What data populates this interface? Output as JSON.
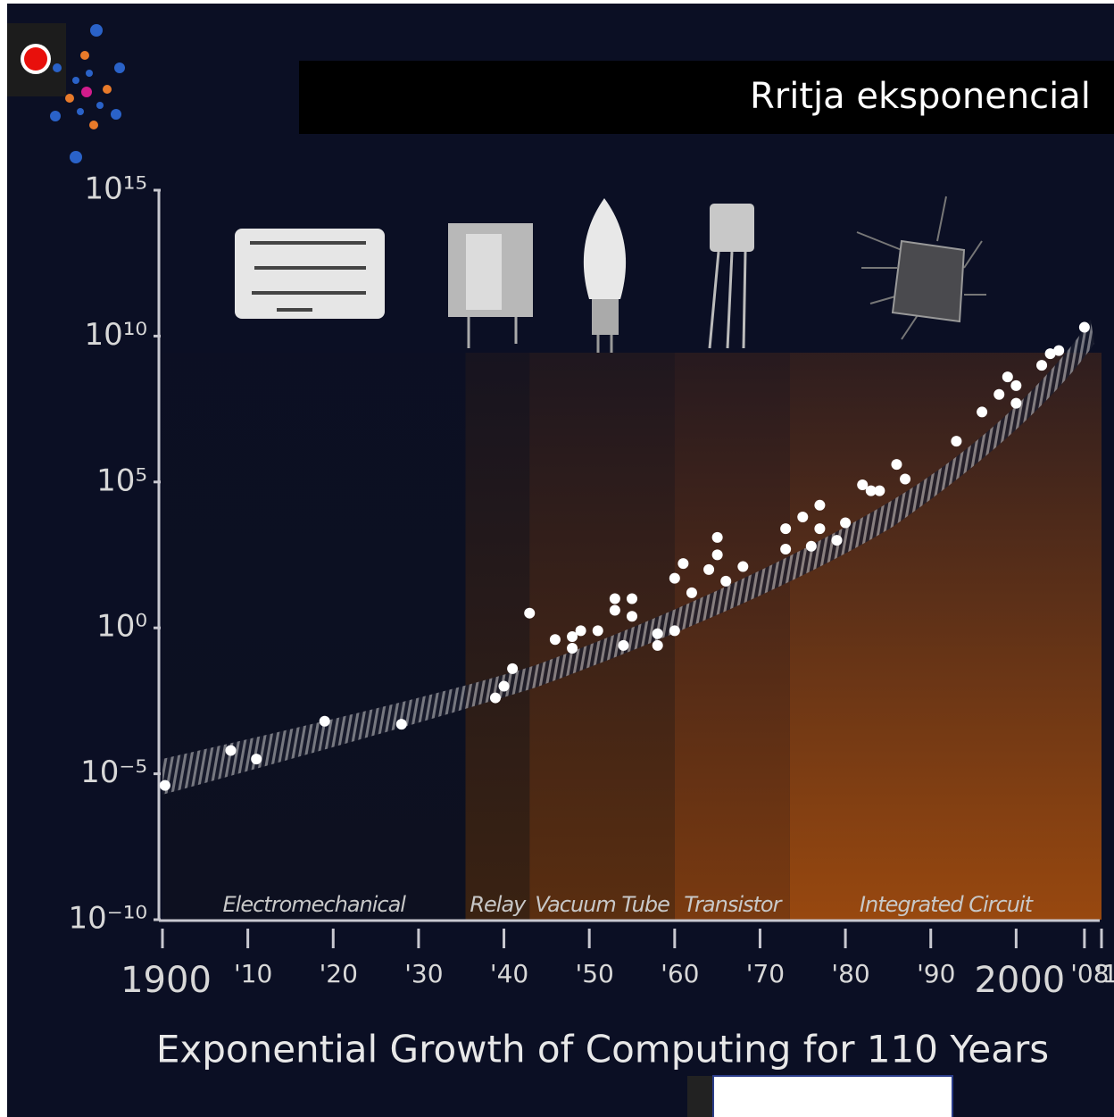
{
  "header": {
    "title": "Rritja eksponencial"
  },
  "chart_data": {
    "type": "scatter",
    "title": "Exponential Growth of Computing for 110 Years",
    "log_scale_y": true,
    "color": "#ffffff",
    "x": [
      1900.3,
      1908,
      1911,
      1919,
      1928,
      1939,
      1940,
      1941,
      1943,
      1946,
      1948,
      1948,
      1949,
      1951,
      1953,
      1953,
      1954,
      1955,
      1955,
      1958,
      1958,
      1960,
      1960,
      1961,
      1962,
      1964,
      1965,
      1965,
      1966,
      1968,
      1973,
      1973,
      1975,
      1976,
      1977,
      1977,
      1979,
      1980,
      1982,
      1983,
      1984,
      1986,
      1987,
      1993,
      1996,
      1998,
      1999,
      2000,
      2000,
      2003,
      2004,
      2005,
      2008
    ],
    "values": [
      4e-06,
      6.3e-05,
      3.2e-05,
      0.00063,
      0.0005,
      0.004,
      0.01,
      0.04,
      3.2,
      0.4,
      0.2,
      0.5,
      0.8,
      0.8,
      10,
      4,
      0.25,
      10,
      2.5,
      0.63,
      0.25,
      0.8,
      50,
      160,
      16,
      100,
      1260,
      320,
      40,
      126,
      2500,
      500,
      6300,
      630,
      16000,
      2500,
      1000,
      4000,
      80000,
      50000,
      50000,
      400000,
      126000,
      2500000,
      25000000,
      100000000.0,
      400000000.0,
      200000000.0,
      50000000.0,
      1000000000.0,
      2500000000.0,
      3200000000.0,
      20000000000.0
    ],
    "xlim": [
      1900,
      2010
    ],
    "xticks": [
      {
        "value": 1900,
        "label": "1900"
      },
      {
        "value": 1910,
        "label": "'10"
      },
      {
        "value": 1920,
        "label": "'20"
      },
      {
        "value": 1930,
        "label": "'30"
      },
      {
        "value": 1940,
        "label": "'40"
      },
      {
        "value": 1950,
        "label": "'50"
      },
      {
        "value": 1960,
        "label": "'60"
      },
      {
        "value": 1970,
        "label": "'70"
      },
      {
        "value": 1980,
        "label": "'80"
      },
      {
        "value": 1990,
        "label": "'90"
      },
      {
        "value": 2000,
        "label": "2000"
      },
      {
        "value": 2008,
        "label": "'08"
      },
      {
        "value": 2010,
        "label": "'1"
      }
    ],
    "ylim": [
      1e-10,
      1000000000000000.0
    ],
    "yticks": [
      {
        "value": 1000000000000000.0,
        "label": "10¹⁵"
      },
      {
        "value": 10000000000.0,
        "label": "10¹⁰"
      },
      {
        "value": 100000.0,
        "label": "10⁵"
      },
      {
        "value": 1,
        "label": "10⁰"
      },
      {
        "value": 1e-05,
        "label": "10⁻⁵"
      },
      {
        "value": 1e-10,
        "label": "10⁻¹⁰"
      }
    ],
    "eras": [
      {
        "name": "Electromechanical",
        "start": 1900,
        "end": 1935.5,
        "color": "#0d1020"
      },
      {
        "name": "Relay",
        "start": 1935.5,
        "end": 1943,
        "color": "#3a2212"
      },
      {
        "name": "Vacuum Tube",
        "start": 1943,
        "end": 1960,
        "color": "#5a2e10"
      },
      {
        "name": "Transistor",
        "start": 1960,
        "end": 1973.5,
        "color": "#7a3a10"
      },
      {
        "name": "Integrated Circuit",
        "start": 1973.5,
        "end": 2010,
        "color": "#98480f"
      }
    ]
  }
}
